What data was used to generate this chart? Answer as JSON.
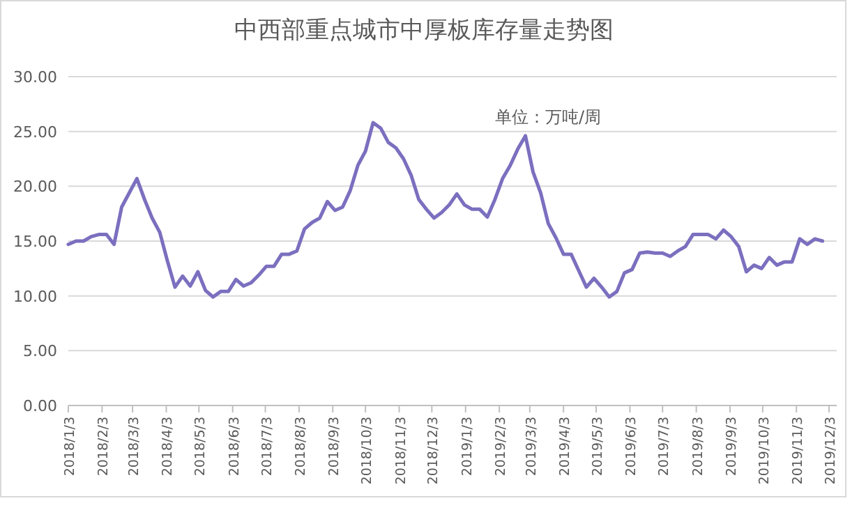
{
  "chart_data": {
    "type": "line",
    "title": "中西部重点城市中厚板库存量走势图",
    "annotations": [
      "单位：万吨/周"
    ],
    "x": [
      "2018-01-03",
      "2018-01-10",
      "2018-01-17",
      "2018-01-24",
      "2018-01-31",
      "2018-02-07",
      "2018-02-14",
      "2018-02-21",
      "2018-02-28",
      "2018-03-07",
      "2018-03-14",
      "2018-03-21",
      "2018-03-28",
      "2018-04-04",
      "2018-04-11",
      "2018-04-18",
      "2018-04-25",
      "2018-05-02",
      "2018-05-09",
      "2018-05-16",
      "2018-05-23",
      "2018-05-30",
      "2018-06-06",
      "2018-06-13",
      "2018-06-20",
      "2018-06-27",
      "2018-07-04",
      "2018-07-11",
      "2018-07-18",
      "2018-07-25",
      "2018-08-01",
      "2018-08-08",
      "2018-08-15",
      "2018-08-22",
      "2018-08-29",
      "2018-09-05",
      "2018-09-12",
      "2018-09-19",
      "2018-09-26",
      "2018-10-03",
      "2018-10-10",
      "2018-10-17",
      "2018-10-24",
      "2018-10-31",
      "2018-11-07",
      "2018-11-14",
      "2018-11-21",
      "2018-11-28",
      "2018-12-05",
      "2018-12-12",
      "2018-12-19",
      "2018-12-26",
      "2019-01-02",
      "2019-01-09",
      "2019-01-16",
      "2019-01-23",
      "2019-01-30",
      "2019-02-06",
      "2019-02-13",
      "2019-02-20",
      "2019-02-27",
      "2019-03-06",
      "2019-03-13",
      "2019-03-20",
      "2019-03-27",
      "2019-04-03",
      "2019-04-10",
      "2019-04-17",
      "2019-04-24",
      "2019-05-01",
      "2019-05-08",
      "2019-05-15",
      "2019-05-22",
      "2019-05-29",
      "2019-06-05",
      "2019-06-12",
      "2019-06-19",
      "2019-06-26",
      "2019-07-03",
      "2019-07-10",
      "2019-07-17",
      "2019-07-24",
      "2019-07-31",
      "2019-08-07",
      "2019-08-14",
      "2019-08-21",
      "2019-08-28",
      "2019-09-04",
      "2019-09-11",
      "2019-09-18",
      "2019-09-25",
      "2019-10-02",
      "2019-10-09",
      "2019-10-16",
      "2019-10-23",
      "2019-10-30",
      "2019-11-06",
      "2019-11-13",
      "2019-11-20",
      "2019-11-27"
    ],
    "series": [
      {
        "color": "#7b6fbf",
        "values": [
          14.7,
          15.0,
          15.0,
          15.4,
          15.6,
          15.6,
          14.7,
          18.1,
          19.4,
          20.7,
          18.8,
          17.1,
          15.8,
          13.2,
          10.8,
          11.8,
          10.9,
          12.2,
          10.5,
          9.9,
          10.4,
          10.4,
          11.5,
          10.9,
          11.2,
          11.9,
          12.7,
          12.7,
          13.8,
          13.8,
          14.1,
          16.1,
          16.7,
          17.1,
          18.6,
          17.8,
          18.1,
          19.6,
          21.9,
          23.2,
          25.8,
          25.3,
          24.0,
          23.5,
          22.5,
          21.0,
          18.8,
          17.9,
          17.1,
          17.6,
          18.3,
          19.3,
          18.3,
          17.9,
          17.9,
          17.2,
          18.8,
          20.7,
          21.9,
          23.4,
          24.6,
          21.3,
          19.4,
          16.6,
          15.3,
          13.8,
          13.8,
          12.3,
          10.8,
          11.6,
          10.8,
          9.9,
          10.4,
          12.1,
          12.4,
          13.9,
          14.0,
          13.9,
          13.9,
          13.6,
          14.1,
          14.5,
          15.6,
          15.6,
          15.6,
          15.2,
          16.0,
          15.4,
          14.5,
          12.2,
          12.8,
          12.5,
          13.5,
          12.8,
          13.1,
          13.1,
          15.2,
          14.7,
          15.2,
          15.0
        ]
      }
    ],
    "xlim": [
      "2018-01-03",
      "2019-12-10"
    ],
    "xticks": [
      {
        "value": "2018-01-03",
        "label": "2018/1/3"
      },
      {
        "value": "2018-02-03",
        "label": "2018/2/3"
      },
      {
        "value": "2018-03-03",
        "label": "2018/3/3"
      },
      {
        "value": "2018-04-03",
        "label": "2018/4/3"
      },
      {
        "value": "2018-05-03",
        "label": "2018/5/3"
      },
      {
        "value": "2018-06-03",
        "label": "2018/6/3"
      },
      {
        "value": "2018-07-03",
        "label": "2018/7/3"
      },
      {
        "value": "2018-08-03",
        "label": "2018/8/3"
      },
      {
        "value": "2018-09-03",
        "label": "2018/9/3"
      },
      {
        "value": "2018-10-03",
        "label": "2018/10/3"
      },
      {
        "value": "2018-11-03",
        "label": "2018/11/3"
      },
      {
        "value": "2018-12-03",
        "label": "2018/12/3"
      },
      {
        "value": "2019-01-03",
        "label": "2019/1/3"
      },
      {
        "value": "2019-02-03",
        "label": "2019/2/3"
      },
      {
        "value": "2019-03-03",
        "label": "2019/3/3"
      },
      {
        "value": "2019-04-03",
        "label": "2019/4/3"
      },
      {
        "value": "2019-05-03",
        "label": "2019/5/3"
      },
      {
        "value": "2019-06-03",
        "label": "2019/6/3"
      },
      {
        "value": "2019-07-03",
        "label": "2019/7/3"
      },
      {
        "value": "2019-08-03",
        "label": "2019/8/3"
      },
      {
        "value": "2019-09-03",
        "label": "2019/9/3"
      },
      {
        "value": "2019-10-03",
        "label": "2019/10/3"
      },
      {
        "value": "2019-11-03",
        "label": "2019/11/3"
      },
      {
        "value": "2019-12-03",
        "label": "2019/12/3"
      }
    ],
    "ylim": [
      0,
      30
    ],
    "yticks": [
      {
        "value": 0,
        "label": "0.00"
      },
      {
        "value": 5,
        "label": "5.00"
      },
      {
        "value": 10,
        "label": "10.00"
      },
      {
        "value": 15,
        "label": "15.00"
      },
      {
        "value": 20,
        "label": "20.00"
      },
      {
        "value": 25,
        "label": "25.00"
      },
      {
        "value": 30,
        "label": "30.00"
      }
    ],
    "grid": "y",
    "marker": "none",
    "line_style": "solid"
  }
}
